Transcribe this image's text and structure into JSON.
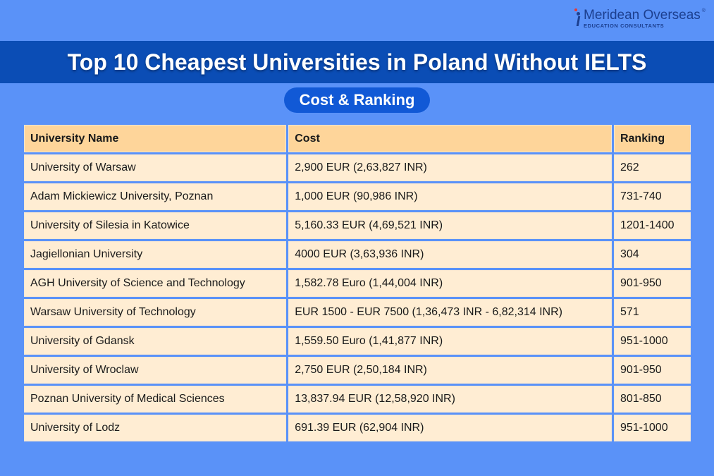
{
  "logo": {
    "name": "Meridean Overseas",
    "tagline": "EDUCATION CONSULTANTS",
    "registered": "®"
  },
  "title": "Top 10 Cheapest Universities in Poland Without IELTS",
  "subtitle": "Cost & Ranking",
  "table": {
    "headers": [
      "University Name",
      "Cost",
      "Ranking"
    ],
    "rows": [
      [
        "University of Warsaw",
        "2,900 EUR (2,63,827 INR)",
        "262"
      ],
      [
        "Adam Mickiewicz University, Poznan",
        "1,000 EUR (90,986 INR)",
        "731-740"
      ],
      [
        "University of Silesia in Katowice",
        "5,160.33 EUR (4,69,521 INR)",
        "1201-1400"
      ],
      [
        "Jagiellonian University",
        "4000 EUR (3,63,936 INR)",
        "304"
      ],
      [
        "AGH University of Science and Technology",
        "1,582.78 Euro (1,44,004 INR)",
        "901-950"
      ],
      [
        "Warsaw University of Technology",
        "EUR 1500 - EUR 7500 (1,36,473 INR - 6,82,314 INR)",
        "571"
      ],
      [
        "University of Gdansk",
        "1,559.50 Euro (1,41,877 INR)",
        "951-1000"
      ],
      [
        "University of Wroclaw",
        "2,750 EUR (2,50,184 INR)",
        "901-950"
      ],
      [
        "Poznan University of Medical Sciences",
        "13,837.94 EUR (12,58,920 INR)",
        "801-850"
      ],
      [
        "University of Lodz",
        "691.39 EUR (62,904 INR)",
        "951-1000"
      ]
    ]
  }
}
